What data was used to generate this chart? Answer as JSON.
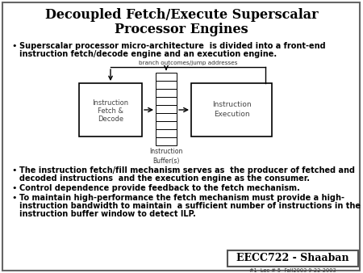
{
  "title_line1": "Decoupled Fetch/Execute Superscalar",
  "title_line2": "Processor Engines",
  "slide_bg": "#ffffff",
  "branch_label": "branch outcomes/jump addresses",
  "buffer_label": "Instruction\nBuffer(s)",
  "fetch_label_1": "Instruction",
  "fetch_label_2": "Fetch &",
  "fetch_label_3": "Decode",
  "exec_label_1": "Instruction",
  "exec_label_2": "Execution",
  "footer_main": "EECC722 - Shaaban",
  "footer_sub": "#1  Lec # 5  Fall2003 9-22-2003",
  "b1_l1": "Superscalar processor micro-architecture  is divided into a front-end",
  "b1_l2": "instruction fetch/decode engine and an execution engine.",
  "b2_l1": "The instruction fetch/fill mechanism serves as  the producer of fetched and",
  "b2_l2": "decoded instructions  and the execution engine as the consumer.",
  "b3_l1": "Control dependence provide feedback to the fetch mechanism.",
  "b4_l1": "To maintain high-performance the fetch mechanism must provide a high-",
  "b4_l2": "instruction bandwidth to maintain  a sufficient number of instructions in the",
  "b4_l3": "instruction buffer window to detect ILP."
}
